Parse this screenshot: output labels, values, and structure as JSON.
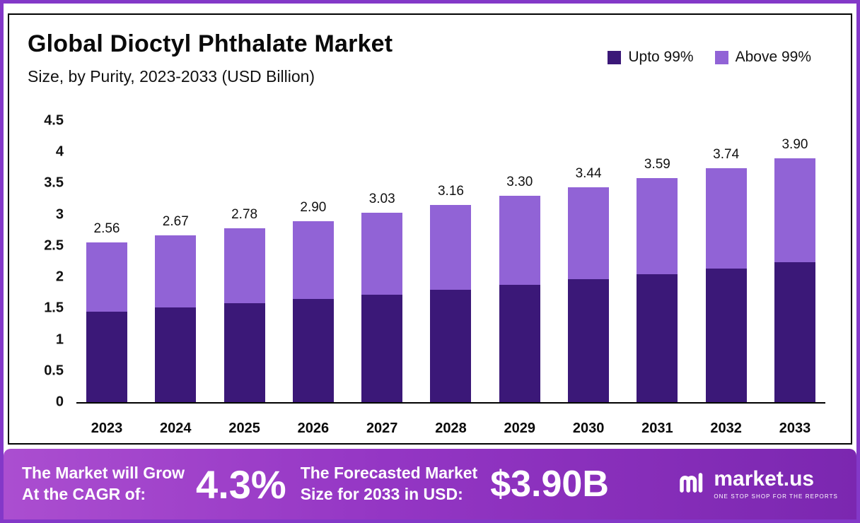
{
  "chart_data": {
    "type": "bar",
    "stacked": true,
    "title": "Global Dioctyl Phthalate Market",
    "subtitle": "Size, by Purity, 2023-2033 (USD Billion)",
    "categories": [
      "2023",
      "2024",
      "2025",
      "2026",
      "2027",
      "2028",
      "2029",
      "2030",
      "2031",
      "2032",
      "2033"
    ],
    "series": [
      {
        "name": "Upto 99%",
        "color": "#3b1878",
        "values": [
          1.45,
          1.51,
          1.58,
          1.65,
          1.72,
          1.8,
          1.88,
          1.97,
          2.05,
          2.14,
          2.24
        ]
      },
      {
        "name": "Above 99%",
        "color": "#9163d6",
        "values": [
          1.11,
          1.16,
          1.2,
          1.25,
          1.31,
          1.36,
          1.42,
          1.47,
          1.54,
          1.6,
          1.66
        ]
      }
    ],
    "totals": [
      2.56,
      2.67,
      2.78,
      2.9,
      3.03,
      3.16,
      3.3,
      3.44,
      3.59,
      3.74,
      3.9
    ],
    "xlabel": "",
    "ylabel": "",
    "ylim": [
      0,
      4.5
    ],
    "yticks": [
      0,
      0.5,
      1,
      1.5,
      2,
      2.5,
      3,
      3.5,
      4,
      4.5
    ],
    "grid": false,
    "legend_position": "top-right"
  },
  "banner": {
    "cagr_label_line1": "The Market will Grow",
    "cagr_label_line2": "At the CAGR of:",
    "cagr_value": "4.3%",
    "forecast_label_line1": "The Forecasted Market",
    "forecast_label_line2": "Size for 2033 in USD:",
    "forecast_value": "$3.90B",
    "brand": "market.us",
    "brand_tagline": "ONE STOP SHOP FOR THE REPORTS"
  },
  "colors": {
    "frame_border": "#8338c8",
    "bar_dark": "#3b1878",
    "bar_light": "#9163d6",
    "banner_gradient_start": "#ab4ed0",
    "banner_gradient_end": "#7b27b0"
  }
}
